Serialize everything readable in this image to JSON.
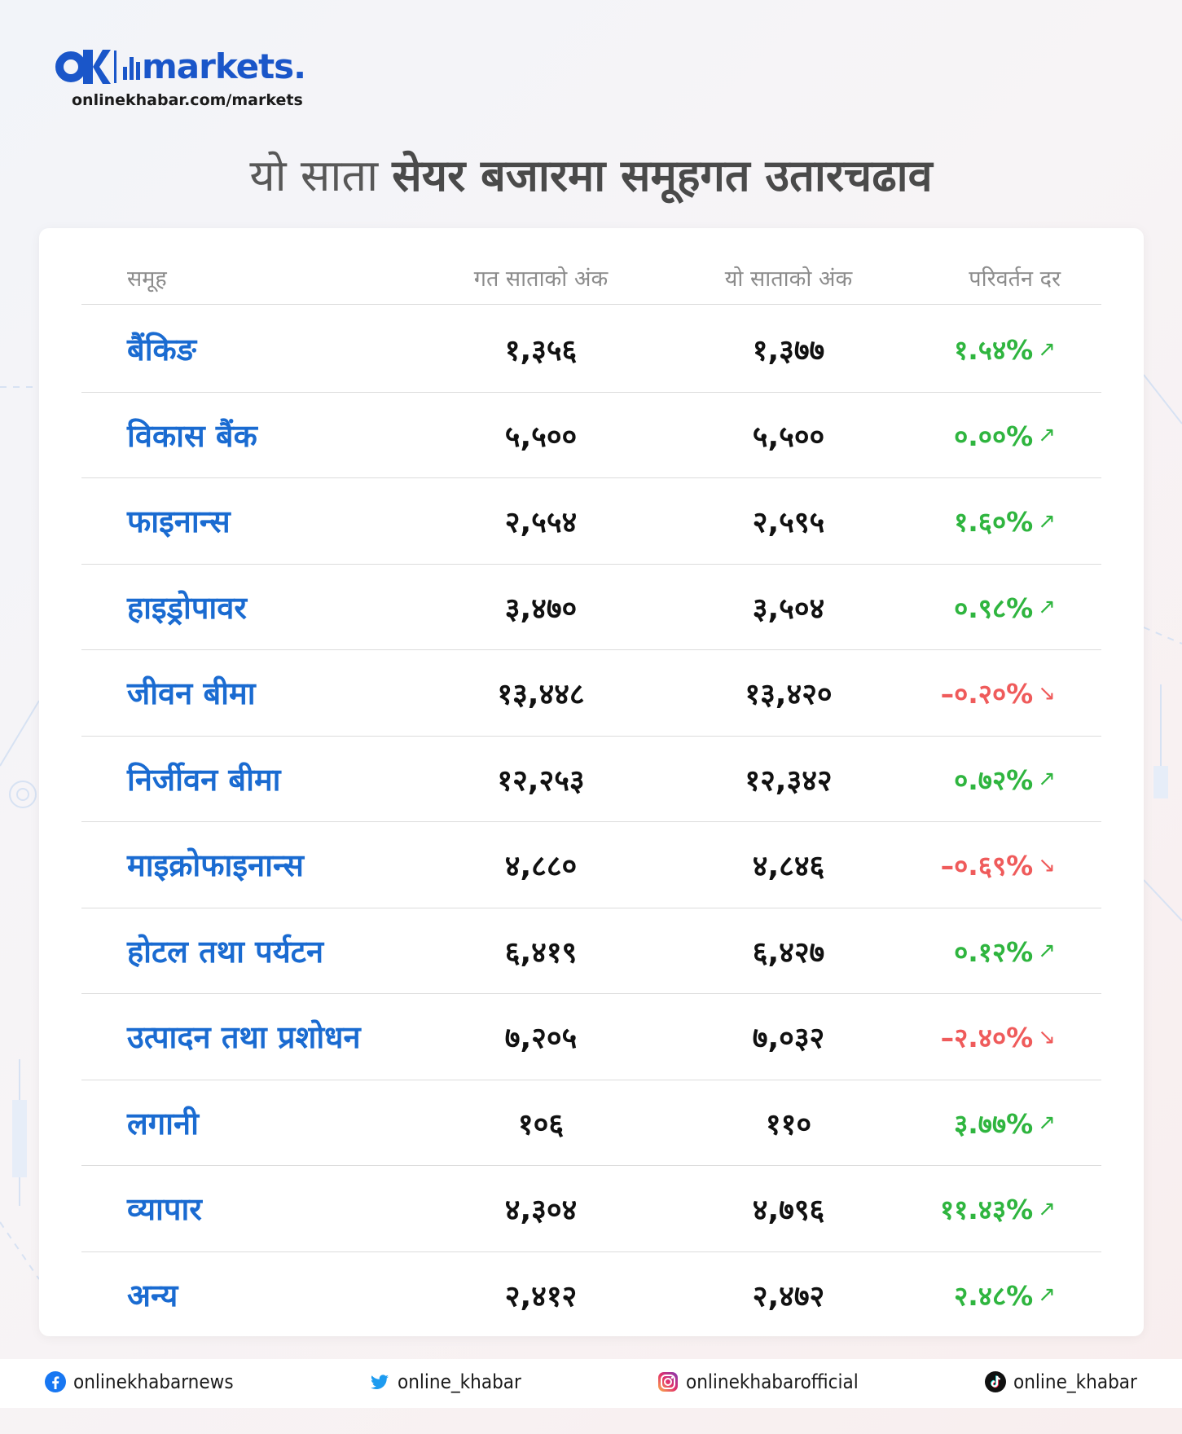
{
  "brand": {
    "logo_text": "markets.",
    "logo_mark": "OK",
    "url": "onlinekhabar.com/markets",
    "color": "#1a56c9"
  },
  "headline": {
    "light": "यो साता",
    "bold": "सेयर बजारमा समूहगत उतारचढाव"
  },
  "table": {
    "headers": {
      "group": "समूह",
      "last_week": "गत साताको अंक",
      "this_week": "यो साताको अंक",
      "change": "परिवर्तन दर"
    },
    "rows": [
      {
        "name": "बैंकिङ",
        "last": "१,३५६",
        "this": "१,३७७",
        "change": "१.५४%",
        "dir": "up"
      },
      {
        "name": "विकास बैंक",
        "last": "५,५००",
        "this": "५,५००",
        "change": "०.००%",
        "dir": "up"
      },
      {
        "name": "फाइनान्स",
        "last": "२,५५४",
        "this": "२,५९५",
        "change": "१.६०%",
        "dir": "up"
      },
      {
        "name": "हाइड्रोपावर",
        "last": "३,४७०",
        "this": "३,५०४",
        "change": "०.९८%",
        "dir": "up"
      },
      {
        "name": "जीवन बीमा",
        "last": "१३,४४८",
        "this": "१३,४२०",
        "change": "–०.२०%",
        "dir": "down"
      },
      {
        "name": "निर्जीवन बीमा",
        "last": "१२,२५३",
        "this": "१२,३४२",
        "change": "०.७२%",
        "dir": "up"
      },
      {
        "name": "माइक्रोफाइनान्स",
        "last": "४,८८०",
        "this": "४,८४६",
        "change": "–०.६९%",
        "dir": "down"
      },
      {
        "name": "होटल तथा पर्यटन",
        "last": "६,४१९",
        "this": "६,४२७",
        "change": "०.१२%",
        "dir": "up"
      },
      {
        "name": "उत्पादन तथा प्रशोधन",
        "last": "७,२०५",
        "this": "७,०३२",
        "change": "–२.४०%",
        "dir": "down"
      },
      {
        "name": "लगानी",
        "last": "१०६",
        "this": "११०",
        "change": "३.७७%",
        "dir": "up"
      },
      {
        "name": "व्यापार",
        "last": "४,३०४",
        "this": "४,७९६",
        "change": "११.४३%",
        "dir": "up"
      },
      {
        "name": "अन्य",
        "last": "२,४१२",
        "this": "२,४७२",
        "change": "२.४८%",
        "dir": "up"
      }
    ],
    "colors": {
      "name": "#1a6bd1",
      "up": "#2fb53f",
      "down": "#ef5b5b"
    }
  },
  "footer": {
    "facebook": {
      "icon": "facebook-icon",
      "handle": "onlinekhabarnews"
    },
    "twitter": {
      "icon": "twitter-icon",
      "handle": "online_khabar"
    },
    "instagram": {
      "icon": "instagram-icon",
      "handle": "onlinekhabarofficial"
    },
    "tiktok": {
      "icon": "tiktok-icon",
      "handle": "online_khabar"
    }
  }
}
